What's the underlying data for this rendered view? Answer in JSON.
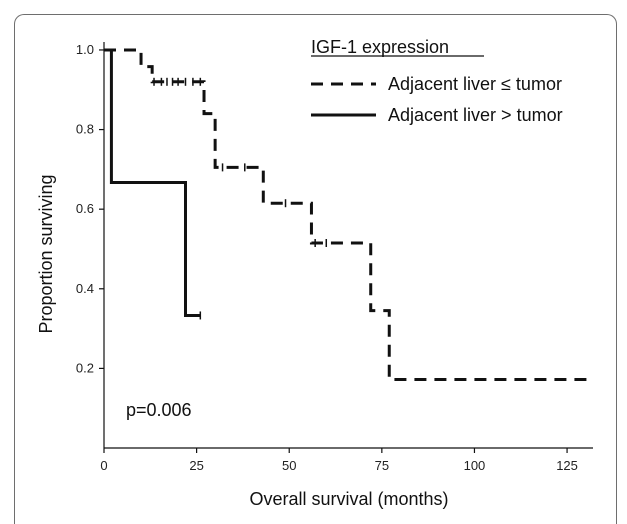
{
  "chart_data": {
    "type": "line",
    "subtype": "kaplan-meier",
    "xlabel": "Overall survival (months)",
    "ylabel": "Proportion surviving",
    "xlim": [
      0,
      132
    ],
    "ylim": [
      0,
      1.02
    ],
    "x_ticks": [
      0,
      25,
      50,
      75,
      100,
      125
    ],
    "y_ticks": [
      0.2,
      0.4,
      0.6,
      0.8,
      1.0
    ],
    "x_tick_labels": [
      "0",
      "25",
      "50",
      "75",
      "100",
      "125"
    ],
    "y_tick_labels": [
      "0.2",
      "0.4",
      "0.6",
      "0.8",
      "1.0"
    ],
    "grid": false,
    "legend": {
      "title": "IGF-1 expression",
      "placement": "top-right"
    },
    "annotation": "p=0.006",
    "series": [
      {
        "name": "Adjacent liver ≤ tumor",
        "style": "dashed",
        "color": "#111111",
        "steps": [
          [
            0,
            1.0
          ],
          [
            10,
            0.958
          ],
          [
            13,
            0.92
          ],
          [
            27,
            0.84
          ],
          [
            30,
            0.705
          ],
          [
            43,
            0.615
          ],
          [
            56,
            0.515
          ],
          [
            72,
            0.345
          ],
          [
            77,
            0.172
          ],
          [
            132,
            0.172
          ]
        ],
        "censored": [
          [
            13.5,
            0.92
          ],
          [
            15.5,
            0.92
          ],
          [
            17,
            0.92
          ],
          [
            18.5,
            0.92
          ],
          [
            20,
            0.92
          ],
          [
            22,
            0.92
          ],
          [
            24,
            0.92
          ],
          [
            26,
            0.92
          ],
          [
            32,
            0.705
          ],
          [
            38,
            0.705
          ],
          [
            49,
            0.615
          ],
          [
            57,
            0.515
          ],
          [
            60,
            0.515
          ]
        ]
      },
      {
        "name": "Adjacent liver > tumor",
        "style": "solid",
        "color": "#111111",
        "steps": [
          [
            0,
            1.0
          ],
          [
            2,
            0.667
          ],
          [
            22,
            0.333
          ],
          [
            26,
            0.333
          ]
        ],
        "censored": [
          [
            26,
            0.333
          ]
        ]
      }
    ]
  }
}
